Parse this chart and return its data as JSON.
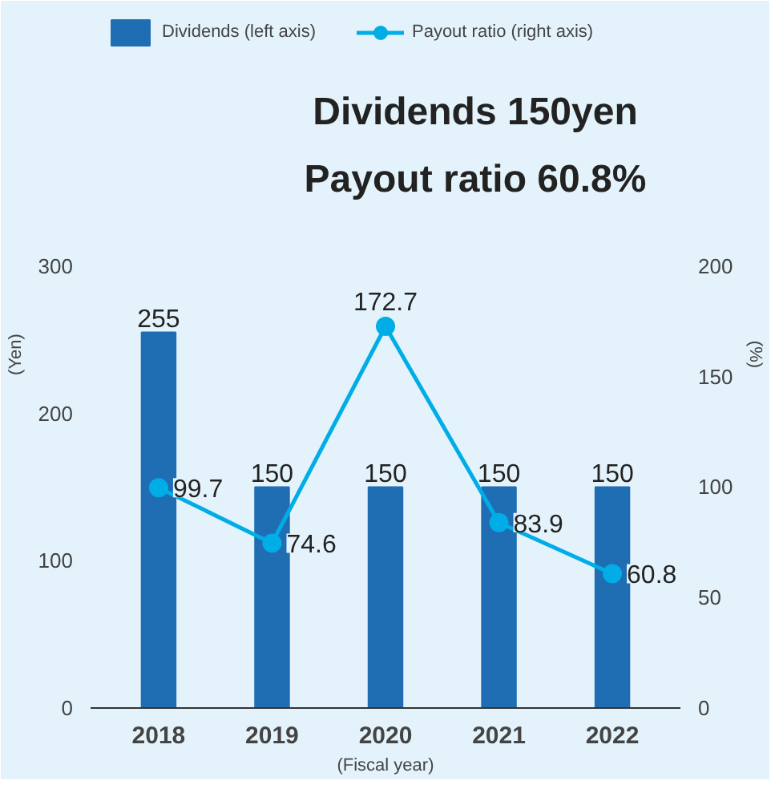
{
  "chart_data": {
    "type": "bar",
    "annotations": [
      "Dividends 150yen",
      "Payout ratio 60.8%"
    ],
    "categories": [
      "2018",
      "2019",
      "2020",
      "2021",
      "2022"
    ],
    "series": [
      {
        "name": "Dividends (left axis)",
        "color": "#1f6db3",
        "values": [
          255,
          150,
          150,
          150,
          150
        ]
      },
      {
        "name": "Payout ratio (right axis)",
        "type": "line",
        "axis": "y2",
        "color": "#00ade6",
        "marker": "circle",
        "values": [
          99.7,
          74.6,
          172.7,
          83.9,
          60.8
        ]
      }
    ],
    "ylabel": "(Yen)",
    "y2label": "(%)",
    "xlabel": "(Fiscal year)",
    "ylim": [
      0,
      480
    ],
    "yticks": [
      0,
      100,
      200,
      300
    ],
    "y2lim": [
      0,
      320
    ],
    "y2ticks": [
      0,
      50,
      100,
      150,
      200
    ],
    "data_labels": true,
    "grid": false,
    "legend": "top left"
  }
}
